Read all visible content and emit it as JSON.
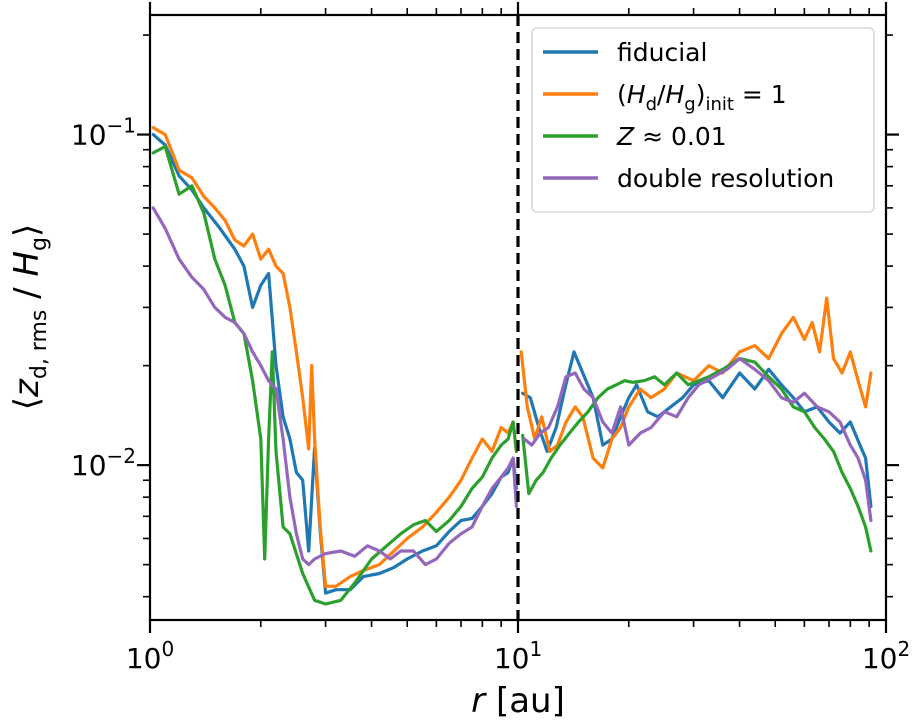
{
  "chart_data": {
    "type": "line",
    "x_scale": "log",
    "y_scale": "log",
    "xlim": [
      1,
      100
    ],
    "ylim": [
      0.0034,
      0.23
    ],
    "xlabel": {
      "var": "r",
      "unit": "[au]"
    },
    "ylabel": {
      "open": "⟨",
      "z": "z",
      "z_sub": "d, rms",
      "slash": " / ",
      "H": "H",
      "H_sub": "g",
      "close": "⟩"
    },
    "x_ticks": [
      {
        "value": 1,
        "base": "10",
        "exp": "0"
      },
      {
        "value": 10,
        "base": "10",
        "exp": "1"
      },
      {
        "value": 100,
        "base": "10",
        "exp": "2"
      }
    ],
    "y_ticks": [
      {
        "value": 0.01,
        "base": "10",
        "exp": "−2"
      },
      {
        "value": 0.1,
        "base": "10",
        "exp": "−1"
      }
    ],
    "vline": {
      "x": 10,
      "style": "dashed",
      "color": "#000000"
    },
    "legend": {
      "position": "upper-right",
      "entries": [
        {
          "key": "fiducial",
          "parts": [
            {
              "t": "fiducial"
            }
          ]
        },
        {
          "key": "hd_init",
          "parts": [
            {
              "t": "("
            },
            {
              "t": "H",
              "i": true
            },
            {
              "t": "d",
              "sub": true
            },
            {
              "t": "/"
            },
            {
              "t": "H",
              "i": true
            },
            {
              "t": "g",
              "sub": true
            },
            {
              "t": ")"
            },
            {
              "t": "init",
              "sub": true
            },
            {
              "t": " = 1"
            }
          ]
        },
        {
          "key": "z001",
          "parts": [
            {
              "t": "Z",
              "i": true
            },
            {
              "t": " ≈ 0.01"
            }
          ]
        },
        {
          "key": "double_res",
          "parts": [
            {
              "t": "double resolution"
            }
          ]
        }
      ]
    },
    "series": [
      {
        "name": "fiducial",
        "color": "#1f77b4",
        "segments": [
          {
            "x": [
              1.02,
              1.1,
              1.2,
              1.3,
              1.4,
              1.55,
              1.7,
              1.8,
              1.9,
              2.0,
              2.1,
              2.2,
              2.3,
              2.4,
              2.5,
              2.6,
              2.7,
              2.8,
              2.9,
              3.0,
              3.2,
              3.5,
              3.8,
              4.2,
              4.6,
              5.0,
              5.5,
              6.0,
              6.5,
              7.0,
              7.5,
              8.0,
              8.5,
              9.0,
              9.4,
              9.7,
              9.9
            ],
            "y": [
              0.1,
              0.093,
              0.075,
              0.068,
              0.06,
              0.052,
              0.045,
              0.04,
              0.03,
              0.035,
              0.038,
              0.02,
              0.014,
              0.012,
              0.0095,
              0.009,
              0.0055,
              0.0113,
              0.0063,
              0.0041,
              0.0042,
              0.0042,
              0.0046,
              0.0047,
              0.0049,
              0.0052,
              0.0055,
              0.0057,
              0.0063,
              0.0068,
              0.0069,
              0.0075,
              0.0082,
              0.0092,
              0.0095,
              0.0105,
              0.0085
            ]
          },
          {
            "x": [
              10.3,
              10.8,
              11.4,
              12.0,
              12.7,
              13.4,
              14.2,
              15.0,
              16.0,
              17.0,
              18.0,
              19.0,
              20.0,
              21.0,
              22.5,
              24.0,
              26.0,
              28.0,
              30.0,
              33.0,
              36.0,
              40.0,
              44.0,
              48.0,
              52.0,
              56.0,
              60.0,
              65.0,
              70.0,
              75.0,
              80.0,
              85.0,
              88.0,
              91.0
            ],
            "y": [
              0.0165,
              0.016,
              0.013,
              0.011,
              0.013,
              0.017,
              0.022,
              0.019,
              0.016,
              0.0115,
              0.012,
              0.014,
              0.016,
              0.0175,
              0.0145,
              0.014,
              0.015,
              0.016,
              0.0175,
              0.018,
              0.016,
              0.019,
              0.017,
              0.0195,
              0.0175,
              0.016,
              0.0145,
              0.015,
              0.0135,
              0.0125,
              0.0135,
              0.0115,
              0.0105,
              0.0075
            ]
          }
        ]
      },
      {
        "name": "hd_init",
        "color": "#ff7f0e",
        "segments": [
          {
            "x": [
              1.02,
              1.1,
              1.2,
              1.3,
              1.4,
              1.5,
              1.6,
              1.7,
              1.8,
              1.9,
              2.0,
              2.1,
              2.2,
              2.3,
              2.4,
              2.5,
              2.6,
              2.7,
              2.75,
              2.8,
              2.9,
              3.0,
              3.2,
              3.5,
              3.8,
              4.2,
              4.6,
              5.0,
              5.5,
              6.0,
              6.5,
              7.0,
              7.5,
              8.0,
              8.5,
              9.0,
              9.4,
              9.7,
              9.9
            ],
            "y": [
              0.105,
              0.1,
              0.078,
              0.074,
              0.065,
              0.06,
              0.055,
              0.048,
              0.046,
              0.05,
              0.042,
              0.045,
              0.04,
              0.038,
              0.03,
              0.022,
              0.016,
              0.0112,
              0.02,
              0.012,
              0.0065,
              0.0043,
              0.0043,
              0.0046,
              0.0048,
              0.005,
              0.0055,
              0.006,
              0.0065,
              0.0072,
              0.008,
              0.009,
              0.0105,
              0.012,
              0.011,
              0.013,
              0.0125,
              0.0135,
              0.011
            ]
          },
          {
            "x": [
              10.2,
              10.6,
              11.1,
              11.6,
              12.2,
              12.8,
              13.5,
              14.3,
              15.0,
              16.0,
              17.0,
              18.0,
              19.0,
              20.0,
              21.5,
              23.0,
              25.0,
              27.0,
              30.0,
              33.0,
              36.0,
              40.0,
              44.0,
              48.0,
              52.0,
              56.0,
              60.0,
              63.0,
              66.0,
              69.0,
              72.0,
              76.0,
              80.0,
              84.0,
              88.0,
              91.0
            ],
            "y": [
              0.022,
              0.015,
              0.012,
              0.014,
              0.011,
              0.0115,
              0.0135,
              0.015,
              0.014,
              0.0105,
              0.0098,
              0.012,
              0.013,
              0.015,
              0.017,
              0.016,
              0.017,
              0.019,
              0.018,
              0.02,
              0.019,
              0.022,
              0.023,
              0.021,
              0.025,
              0.028,
              0.024,
              0.027,
              0.022,
              0.032,
              0.021,
              0.019,
              0.022,
              0.018,
              0.015,
              0.019
            ]
          }
        ]
      },
      {
        "name": "z001",
        "color": "#2ca02c",
        "segments": [
          {
            "x": [
              1.02,
              1.1,
              1.2,
              1.3,
              1.4,
              1.5,
              1.6,
              1.7,
              1.8,
              1.9,
              2.0,
              2.05,
              2.1,
              2.15,
              2.2,
              2.3,
              2.4,
              2.6,
              2.8,
              3.0,
              3.3,
              3.6,
              4.0,
              4.4,
              4.8,
              5.2,
              5.6,
              6.0,
              6.5,
              7.0,
              7.5,
              8.0,
              8.5,
              9.0,
              9.4,
              9.7,
              9.9
            ],
            "y": [
              0.088,
              0.092,
              0.066,
              0.07,
              0.058,
              0.042,
              0.035,
              0.027,
              0.025,
              0.018,
              0.012,
              0.0052,
              0.012,
              0.022,
              0.011,
              0.0065,
              0.0062,
              0.0047,
              0.0039,
              0.0038,
              0.0039,
              0.0044,
              0.0052,
              0.0057,
              0.0062,
              0.0066,
              0.0068,
              0.0063,
              0.0068,
              0.0075,
              0.0085,
              0.0092,
              0.0105,
              0.0115,
              0.012,
              0.0135,
              0.011
            ]
          },
          {
            "x": [
              10.3,
              10.7,
              11.2,
              11.7,
              12.3,
              13.0,
              13.8,
              14.6,
              15.5,
              16.5,
              17.5,
              18.5,
              19.5,
              20.5,
              22.0,
              23.5,
              25.0,
              27.0,
              29.0,
              31.0,
              33.0,
              36.0,
              40.0,
              44.0,
              48.0,
              52.0,
              56.0,
              60.0,
              64.0,
              68.0,
              72.0,
              76.0,
              80.0,
              84.0,
              88.0,
              91.0
            ],
            "y": [
              0.0123,
              0.0082,
              0.009,
              0.0095,
              0.0105,
              0.0115,
              0.0125,
              0.0135,
              0.0145,
              0.016,
              0.017,
              0.0175,
              0.018,
              0.0178,
              0.018,
              0.0185,
              0.0175,
              0.019,
              0.0175,
              0.018,
              0.0185,
              0.0195,
              0.021,
              0.0205,
              0.0185,
              0.017,
              0.015,
              0.0145,
              0.013,
              0.012,
              0.011,
              0.0095,
              0.0085,
              0.0075,
              0.0065,
              0.0055
            ]
          }
        ]
      },
      {
        "name": "double_res",
        "color": "#9467bd",
        "segments": [
          {
            "x": [
              1.02,
              1.1,
              1.2,
              1.3,
              1.4,
              1.5,
              1.6,
              1.7,
              1.8,
              1.9,
              2.0,
              2.1,
              2.2,
              2.3,
              2.4,
              2.5,
              2.6,
              2.7,
              2.8,
              3.0,
              3.3,
              3.6,
              3.9,
              4.2,
              4.5,
              4.8,
              5.2,
              5.6,
              6.0,
              6.5,
              7.0,
              7.5,
              8.0,
              8.5,
              9.0,
              9.4,
              9.7,
              9.9
            ],
            "y": [
              0.06,
              0.052,
              0.042,
              0.037,
              0.034,
              0.03,
              0.028,
              0.027,
              0.025,
              0.022,
              0.02,
              0.018,
              0.017,
              0.012,
              0.008,
              0.0062,
              0.0052,
              0.005,
              0.0052,
              0.0054,
              0.0055,
              0.0053,
              0.0057,
              0.0055,
              0.0052,
              0.0055,
              0.0055,
              0.005,
              0.0052,
              0.0058,
              0.0062,
              0.0065,
              0.0075,
              0.0085,
              0.0092,
              0.0098,
              0.0105,
              0.0075
            ]
          },
          {
            "x": [
              10.4,
              10.9,
              11.5,
              12.1,
              12.8,
              13.5,
              14.3,
              15.1,
              16.0,
              17.0,
              18.0,
              19.0,
              20.0,
              21.5,
              23.0,
              25.0,
              27.0,
              29.0,
              31.0,
              34.0,
              37.0,
              40.0,
              44.0,
              48.0,
              52.0,
              56.0,
              60.0,
              65.0,
              70.0,
              75.0,
              80.0,
              84.0,
              88.0,
              91.0
            ],
            "y": [
              0.012,
              0.0115,
              0.0125,
              0.013,
              0.015,
              0.0185,
              0.019,
              0.017,
              0.016,
              0.0135,
              0.0125,
              0.015,
              0.0115,
              0.0125,
              0.013,
              0.0145,
              0.014,
              0.016,
              0.0175,
              0.0185,
              0.0195,
              0.021,
              0.0195,
              0.018,
              0.016,
              0.0155,
              0.0165,
              0.015,
              0.0145,
              0.0135,
              0.0115,
              0.0105,
              0.009,
              0.0068
            ]
          }
        ]
      }
    ]
  }
}
